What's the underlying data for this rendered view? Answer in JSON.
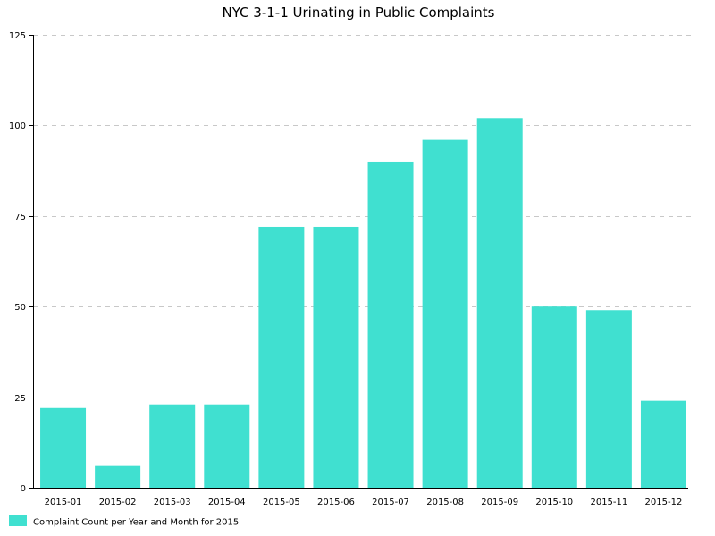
{
  "chart_data": {
    "type": "bar",
    "title": "NYC 3-1-1 Urinating in Public Complaints",
    "categories": [
      "2015-01",
      "2015-02",
      "2015-03",
      "2015-04",
      "2015-05",
      "2015-06",
      "2015-07",
      "2015-08",
      "2015-09",
      "2015-10",
      "2015-11",
      "2015-12"
    ],
    "series": [
      {
        "name": "Complaint Count per Year and Month for 2015",
        "values": [
          22,
          6,
          23,
          23,
          72,
          72,
          90,
          96,
          102,
          50,
          49,
          24
        ],
        "color": "#40e0d0"
      }
    ],
    "xlabel": "",
    "ylabel": "",
    "ylim": [
      0,
      125
    ],
    "yticks": [
      "0",
      "25",
      "50",
      "75",
      "100",
      "125"
    ],
    "grid": true,
    "legend_position": "bottom-left"
  }
}
